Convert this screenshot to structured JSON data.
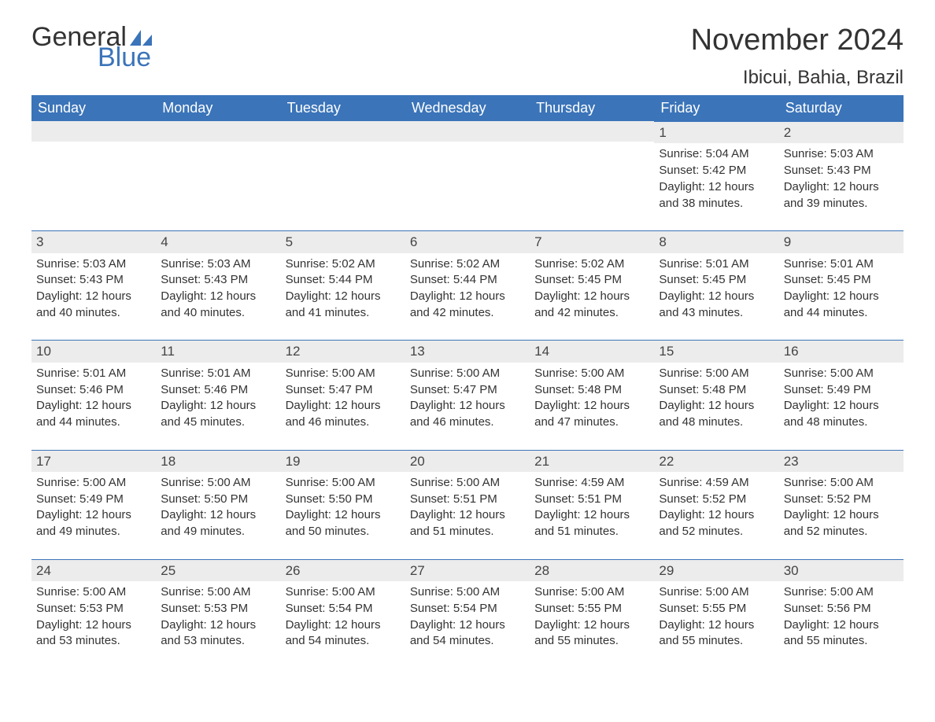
{
  "logo": {
    "word1": "General",
    "word2": "Blue",
    "sail_color": "#3b74b9"
  },
  "title": "November 2024",
  "location": "Ibicui, Bahia, Brazil",
  "colors": {
    "header_bg": "#3b74b9",
    "header_text": "#ffffff",
    "day_stripe_bg": "#ececec",
    "day_stripe_border": "#3b74b9",
    "body_text": "#333333",
    "page_bg": "#ffffff"
  },
  "weekdays": [
    "Sunday",
    "Monday",
    "Tuesday",
    "Wednesday",
    "Thursday",
    "Friday",
    "Saturday"
  ],
  "weeks": [
    [
      null,
      null,
      null,
      null,
      null,
      {
        "n": "1",
        "sunrise": "5:04 AM",
        "sunset": "5:42 PM",
        "daylight": "12 hours and 38 minutes."
      },
      {
        "n": "2",
        "sunrise": "5:03 AM",
        "sunset": "5:43 PM",
        "daylight": "12 hours and 39 minutes."
      }
    ],
    [
      {
        "n": "3",
        "sunrise": "5:03 AM",
        "sunset": "5:43 PM",
        "daylight": "12 hours and 40 minutes."
      },
      {
        "n": "4",
        "sunrise": "5:03 AM",
        "sunset": "5:43 PM",
        "daylight": "12 hours and 40 minutes."
      },
      {
        "n": "5",
        "sunrise": "5:02 AM",
        "sunset": "5:44 PM",
        "daylight": "12 hours and 41 minutes."
      },
      {
        "n": "6",
        "sunrise": "5:02 AM",
        "sunset": "5:44 PM",
        "daylight": "12 hours and 42 minutes."
      },
      {
        "n": "7",
        "sunrise": "5:02 AM",
        "sunset": "5:45 PM",
        "daylight": "12 hours and 42 minutes."
      },
      {
        "n": "8",
        "sunrise": "5:01 AM",
        "sunset": "5:45 PM",
        "daylight": "12 hours and 43 minutes."
      },
      {
        "n": "9",
        "sunrise": "5:01 AM",
        "sunset": "5:45 PM",
        "daylight": "12 hours and 44 minutes."
      }
    ],
    [
      {
        "n": "10",
        "sunrise": "5:01 AM",
        "sunset": "5:46 PM",
        "daylight": "12 hours and 44 minutes."
      },
      {
        "n": "11",
        "sunrise": "5:01 AM",
        "sunset": "5:46 PM",
        "daylight": "12 hours and 45 minutes."
      },
      {
        "n": "12",
        "sunrise": "5:00 AM",
        "sunset": "5:47 PM",
        "daylight": "12 hours and 46 minutes."
      },
      {
        "n": "13",
        "sunrise": "5:00 AM",
        "sunset": "5:47 PM",
        "daylight": "12 hours and 46 minutes."
      },
      {
        "n": "14",
        "sunrise": "5:00 AM",
        "sunset": "5:48 PM",
        "daylight": "12 hours and 47 minutes."
      },
      {
        "n": "15",
        "sunrise": "5:00 AM",
        "sunset": "5:48 PM",
        "daylight": "12 hours and 48 minutes."
      },
      {
        "n": "16",
        "sunrise": "5:00 AM",
        "sunset": "5:49 PM",
        "daylight": "12 hours and 48 minutes."
      }
    ],
    [
      {
        "n": "17",
        "sunrise": "5:00 AM",
        "sunset": "5:49 PM",
        "daylight": "12 hours and 49 minutes."
      },
      {
        "n": "18",
        "sunrise": "5:00 AM",
        "sunset": "5:50 PM",
        "daylight": "12 hours and 49 minutes."
      },
      {
        "n": "19",
        "sunrise": "5:00 AM",
        "sunset": "5:50 PM",
        "daylight": "12 hours and 50 minutes."
      },
      {
        "n": "20",
        "sunrise": "5:00 AM",
        "sunset": "5:51 PM",
        "daylight": "12 hours and 51 minutes."
      },
      {
        "n": "21",
        "sunrise": "4:59 AM",
        "sunset": "5:51 PM",
        "daylight": "12 hours and 51 minutes."
      },
      {
        "n": "22",
        "sunrise": "4:59 AM",
        "sunset": "5:52 PM",
        "daylight": "12 hours and 52 minutes."
      },
      {
        "n": "23",
        "sunrise": "5:00 AM",
        "sunset": "5:52 PM",
        "daylight": "12 hours and 52 minutes."
      }
    ],
    [
      {
        "n": "24",
        "sunrise": "5:00 AM",
        "sunset": "5:53 PM",
        "daylight": "12 hours and 53 minutes."
      },
      {
        "n": "25",
        "sunrise": "5:00 AM",
        "sunset": "5:53 PM",
        "daylight": "12 hours and 53 minutes."
      },
      {
        "n": "26",
        "sunrise": "5:00 AM",
        "sunset": "5:54 PM",
        "daylight": "12 hours and 54 minutes."
      },
      {
        "n": "27",
        "sunrise": "5:00 AM",
        "sunset": "5:54 PM",
        "daylight": "12 hours and 54 minutes."
      },
      {
        "n": "28",
        "sunrise": "5:00 AM",
        "sunset": "5:55 PM",
        "daylight": "12 hours and 55 minutes."
      },
      {
        "n": "29",
        "sunrise": "5:00 AM",
        "sunset": "5:55 PM",
        "daylight": "12 hours and 55 minutes."
      },
      {
        "n": "30",
        "sunrise": "5:00 AM",
        "sunset": "5:56 PM",
        "daylight": "12 hours and 55 minutes."
      }
    ]
  ],
  "labels": {
    "sunrise": "Sunrise: ",
    "sunset": "Sunset: ",
    "daylight": "Daylight: "
  }
}
